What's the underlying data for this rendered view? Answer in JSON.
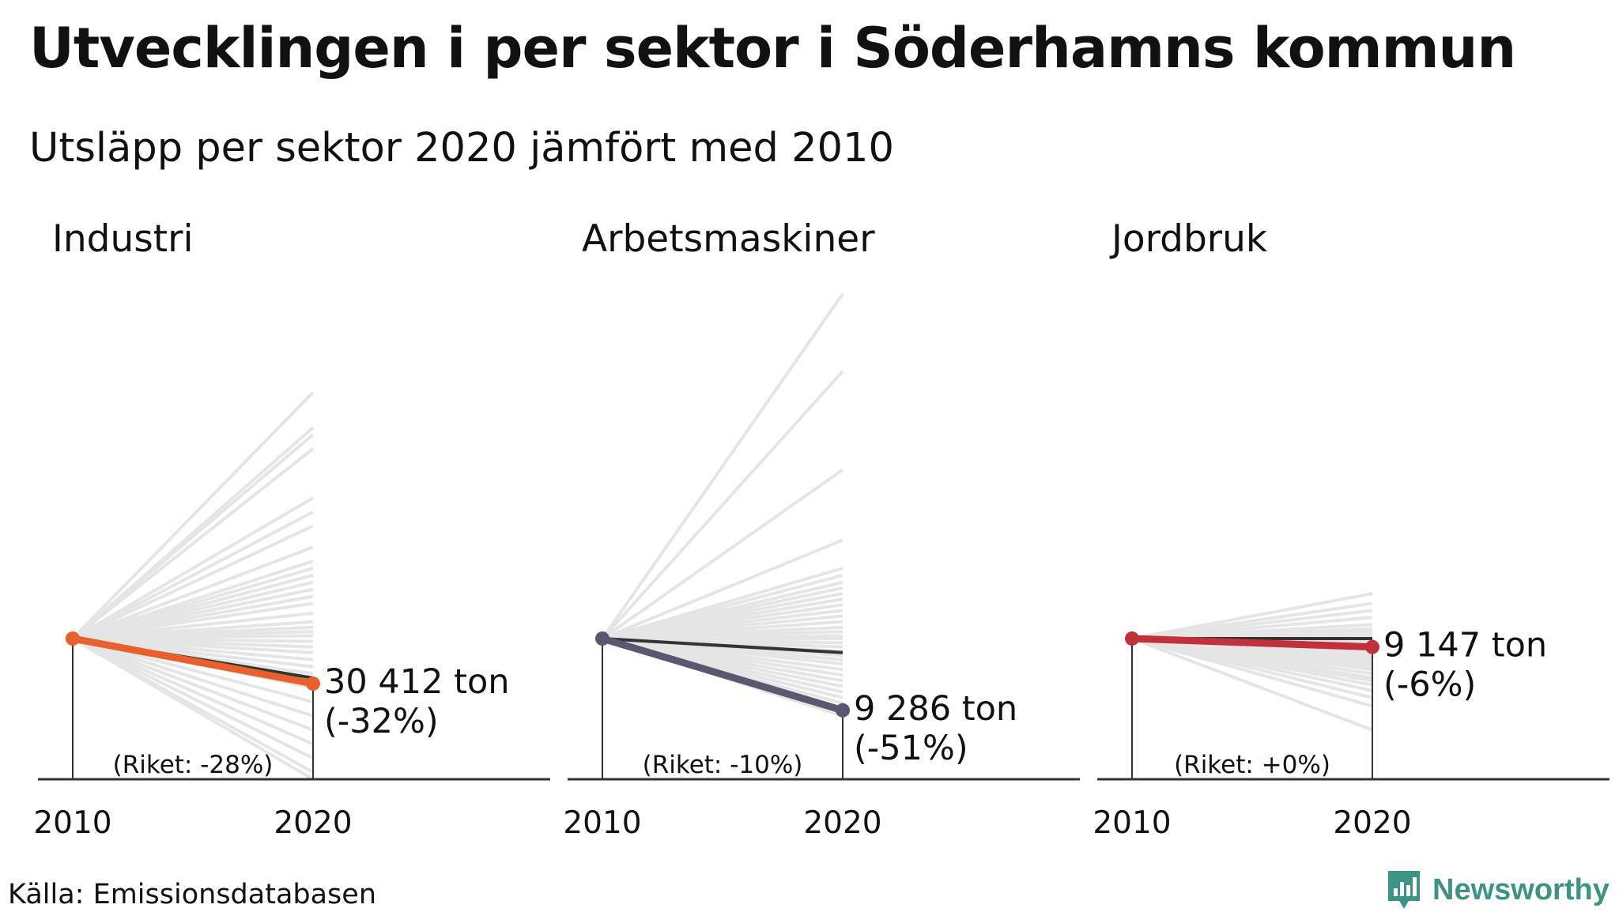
{
  "title": "Utvecklingen i per sektor i Söderhamns kommun",
  "subtitle": "Utsläpp per sektor 2020 jämfört med 2010",
  "source": "Källa: Emissionsdatabasen",
  "brand": {
    "name": "Newsworthy",
    "icon": "newsworthy-logo-icon",
    "color": "#3d9485"
  },
  "chart_data": [
    {
      "type": "line",
      "title": "Industri",
      "x": [
        "2010",
        "2020"
      ],
      "highlight_color": "#e8602c",
      "value_label": "30 412 ton",
      "change_label": "(-32%)",
      "national_label": "(Riket: -28%)",
      "highlight_pct": -32,
      "national_pct": -28,
      "other_municipalities_pct": [
        175,
        150,
        145,
        135,
        100,
        90,
        80,
        65,
        55,
        50,
        45,
        40,
        35,
        30,
        25,
        18,
        12,
        8,
        5,
        2,
        -2,
        -6,
        -10,
        -15,
        -20,
        -25,
        -35,
        -45,
        -55,
        -65,
        -75,
        -85,
        -95,
        -100
      ]
    },
    {
      "type": "line",
      "title": "Arbetsmaskiner",
      "x": [
        "2010",
        "2020"
      ],
      "highlight_color": "#5a5870",
      "value_label": "9 286 ton",
      "change_label": "(-51%)",
      "national_label": "(Riket: -10%)",
      "highlight_pct": -51,
      "national_pct": -10,
      "other_municipalities_pct": [
        245,
        190,
        120,
        70,
        50,
        45,
        40,
        36,
        32,
        28,
        24,
        20,
        16,
        12,
        8,
        5,
        2,
        0,
        -3,
        -6,
        -9,
        -12,
        -15,
        -18,
        -22,
        -26,
        -30,
        -34,
        -38,
        -42,
        -46,
        -50,
        -52,
        -55
      ]
    },
    {
      "type": "line",
      "title": "Jordbruk",
      "x": [
        "2010",
        "2020"
      ],
      "highlight_color": "#c0313c",
      "value_label": "9 147 ton",
      "change_label": "(-6%)",
      "national_label": "(Riket: +0%)",
      "highlight_pct": -6,
      "national_pct": 0,
      "other_municipalities_pct": [
        32,
        25,
        20,
        15,
        10,
        7,
        5,
        3,
        1,
        -1,
        -2,
        -3,
        -4,
        -5,
        -6,
        -7,
        -8,
        -9,
        -10,
        -11,
        -12,
        -14,
        -16,
        -18,
        -20,
        -22,
        -25,
        -28,
        -30,
        -33,
        -37,
        -42,
        -48,
        -65
      ]
    }
  ]
}
